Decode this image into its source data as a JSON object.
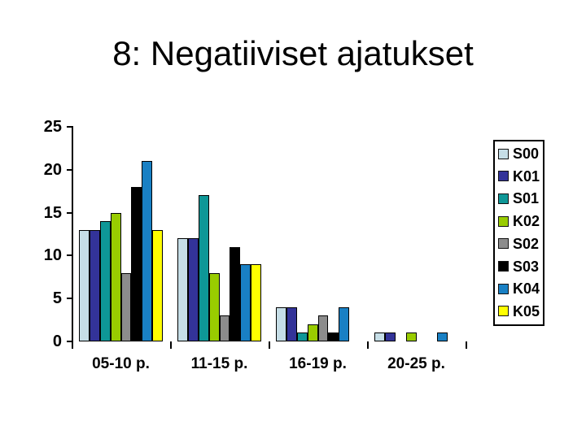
{
  "title": "8: Negatiiviset ajatukset",
  "chart_data": {
    "type": "bar",
    "title": "8: Negatiiviset ajatukset",
    "categories": [
      "05-10 p.",
      "11-15 p.",
      "16-19 p.",
      "20-25 p."
    ],
    "series": [
      {
        "name": "S00",
        "color": "#C6DEE7",
        "values": [
          13,
          12,
          4,
          1
        ]
      },
      {
        "name": "K01",
        "color": "#333399",
        "values": [
          13,
          12,
          4,
          1
        ]
      },
      {
        "name": "S01",
        "color": "#0E9797",
        "values": [
          14,
          17,
          1,
          0
        ]
      },
      {
        "name": "K02",
        "color": "#99CC00",
        "values": [
          15,
          8,
          2,
          1
        ]
      },
      {
        "name": "S02",
        "color": "#8C8C8C",
        "values": [
          8,
          3,
          3,
          0
        ]
      },
      {
        "name": "S03",
        "color": "#000000",
        "values": [
          18,
          11,
          1,
          0
        ]
      },
      {
        "name": "K04",
        "color": "#1980C4",
        "values": [
          21,
          9,
          4,
          1
        ]
      },
      {
        "name": "K05",
        "color": "#FFFF00",
        "values": [
          13,
          9,
          0,
          0
        ]
      }
    ],
    "ylim": [
      0,
      25
    ],
    "yticks": [
      0,
      5,
      10,
      15,
      20,
      25
    ],
    "grid": false,
    "legend_position": "right",
    "background": "#FFFFFF",
    "axis_color": "#000000"
  }
}
